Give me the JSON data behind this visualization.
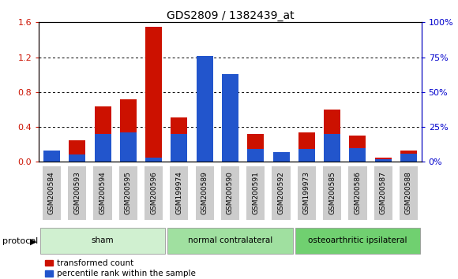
{
  "title": "GDS2809 / 1382439_at",
  "categories": [
    "GSM200584",
    "GSM200593",
    "GSM200594",
    "GSM200595",
    "GSM200596",
    "GSM199974",
    "GSM200589",
    "GSM200590",
    "GSM200591",
    "GSM200592",
    "GSM199973",
    "GSM200585",
    "GSM200586",
    "GSM200587",
    "GSM200588"
  ],
  "red_values": [
    0.12,
    0.25,
    0.64,
    0.72,
    1.55,
    0.51,
    1.07,
    0.9,
    0.32,
    0.09,
    0.34,
    0.6,
    0.3,
    0.05,
    0.13
  ],
  "blue_percentile": [
    8,
    5,
    20,
    21,
    3,
    20,
    76,
    63,
    9,
    7,
    9,
    20,
    10,
    2,
    6
  ],
  "groups": [
    {
      "label": "sham",
      "start": 0,
      "end": 5,
      "color": "#d0f0d0"
    },
    {
      "label": "normal contralateral",
      "start": 5,
      "end": 10,
      "color": "#a0e0a0"
    },
    {
      "label": "osteoarthritic ipsilateral",
      "start": 10,
      "end": 15,
      "color": "#70d070"
    }
  ],
  "ylim_left": [
    0,
    1.6
  ],
  "ylim_right": [
    0,
    100
  ],
  "yticks_left": [
    0,
    0.4,
    0.8,
    1.2,
    1.6
  ],
  "yticks_right": [
    0,
    25,
    50,
    75,
    100
  ],
  "bar_color_red": "#cc1100",
  "bar_color_blue": "#2255cc",
  "tick_color_left": "#cc1100",
  "tick_color_right": "#0000cc",
  "xtick_bg": "#cccccc",
  "legend_red": "transformed count",
  "legend_blue": "percentile rank within the sample",
  "protocol_label": "protocol",
  "fig_bg": "#ffffff"
}
